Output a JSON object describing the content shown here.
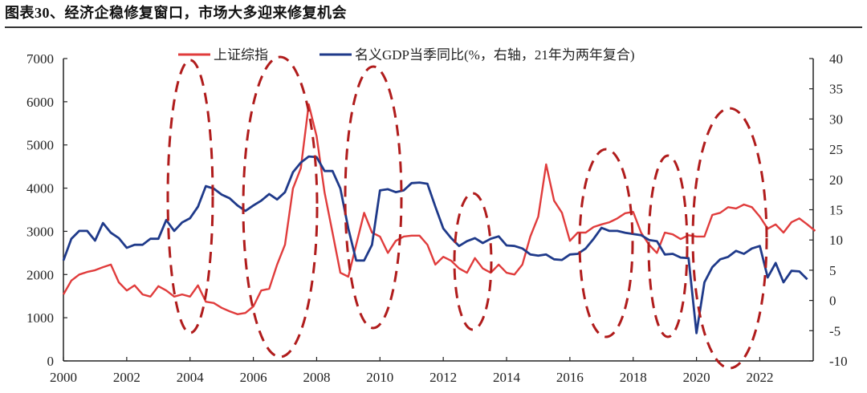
{
  "title": "图表30、经济企稳修复窗口，市场大多迎来修复机会",
  "chart_data": {
    "type": "line",
    "title": "图表30、经济企稳修复窗口，市场大多迎来修复机会",
    "legend_position": "top",
    "grid": false,
    "x_ticks": [
      "2000",
      "2002",
      "2004",
      "2006",
      "2008",
      "2010",
      "2012",
      "2014",
      "2016",
      "2018",
      "2020",
      "2022"
    ],
    "xlim": [
      2000,
      2023.75
    ],
    "left_axis": {
      "ylim": [
        0,
        7000
      ],
      "ticks": [
        "0",
        "1000",
        "2000",
        "3000",
        "4000",
        "5000",
        "6000",
        "7000"
      ]
    },
    "right_axis": {
      "ylim": [
        -10,
        40
      ],
      "ticks": [
        "-10",
        "-5",
        "0",
        "5",
        "10",
        "15",
        "20",
        "25",
        "30",
        "35",
        "40"
      ]
    },
    "series": [
      {
        "name": "上证综指",
        "axis": "left",
        "color": "#e03c3c",
        "x": [
          2000,
          2000.25,
          2000.5,
          2000.75,
          2001,
          2001.25,
          2001.5,
          2001.75,
          2002,
          2002.25,
          2002.5,
          2002.75,
          2003,
          2003.25,
          2003.5,
          2003.75,
          2004,
          2004.25,
          2004.5,
          2004.75,
          2005,
          2005.25,
          2005.5,
          2005.75,
          2006,
          2006.25,
          2006.5,
          2006.75,
          2007,
          2007.25,
          2007.5,
          2007.75,
          2008,
          2008.25,
          2008.5,
          2008.75,
          2009,
          2009.25,
          2009.5,
          2009.75,
          2010,
          2010.25,
          2010.5,
          2010.75,
          2011,
          2011.25,
          2011.5,
          2011.75,
          2012,
          2012.25,
          2012.5,
          2012.75,
          2013,
          2013.25,
          2013.5,
          2013.75,
          2014,
          2014.25,
          2014.5,
          2014.75,
          2015,
          2015.25,
          2015.5,
          2015.75,
          2016,
          2016.25,
          2016.5,
          2016.75,
          2017,
          2017.25,
          2017.5,
          2017.75,
          2018,
          2018.25,
          2018.5,
          2018.75,
          2019,
          2019.25,
          2019.5,
          2019.75,
          2020,
          2020.25,
          2020.5,
          2020.75,
          2021,
          2021.25,
          2021.5,
          2021.75,
          2022,
          2022.25,
          2022.5,
          2022.75,
          2023,
          2023.25,
          2023.5,
          2023.75
        ],
        "values": [
          1540,
          1860,
          2000,
          2060,
          2100,
          2170,
          2230,
          1820,
          1630,
          1750,
          1540,
          1490,
          1730,
          1630,
          1490,
          1540,
          1490,
          1750,
          1370,
          1340,
          1230,
          1150,
          1080,
          1110,
          1260,
          1630,
          1670,
          2230,
          2690,
          3990,
          4460,
          5940,
          5200,
          3900,
          2970,
          2040,
          1950,
          2690,
          3430,
          2970,
          2880,
          2500,
          2780,
          2880,
          2900,
          2900,
          2690,
          2230,
          2410,
          2320,
          2140,
          2040,
          2380,
          2140,
          2040,
          2230,
          2040,
          2000,
          2230,
          2880,
          3340,
          4550,
          3710,
          3430,
          2780,
          2970,
          2970,
          3100,
          3160,
          3210,
          3300,
          3420,
          3450,
          2970,
          2690,
          2500,
          2970,
          2930,
          2820,
          2910,
          2880,
          2880,
          3380,
          3430,
          3560,
          3530,
          3620,
          3560,
          3340,
          3060,
          3160,
          2970,
          3210,
          3300,
          3160,
          3010
        ]
      },
      {
        "name": "名义GDP当季同比(%，右轴，21年为两年复合)",
        "axis": "right",
        "color": "#1f3a8a",
        "x": [
          2000,
          2000.25,
          2000.5,
          2000.75,
          2001,
          2001.25,
          2001.5,
          2001.75,
          2002,
          2002.25,
          2002.5,
          2002.75,
          2003,
          2003.25,
          2003.5,
          2003.75,
          2004,
          2004.25,
          2004.5,
          2004.75,
          2005,
          2005.25,
          2005.5,
          2005.75,
          2006,
          2006.25,
          2006.5,
          2006.75,
          2007,
          2007.25,
          2007.5,
          2007.75,
          2008,
          2008.25,
          2008.5,
          2008.75,
          2009,
          2009.25,
          2009.5,
          2009.75,
          2010,
          2010.25,
          2010.5,
          2010.75,
          2011,
          2011.25,
          2011.5,
          2011.75,
          2012,
          2012.25,
          2012.5,
          2012.75,
          2013,
          2013.25,
          2013.5,
          2013.75,
          2014,
          2014.25,
          2014.5,
          2014.75,
          2015,
          2015.25,
          2015.5,
          2015.75,
          2016,
          2016.25,
          2016.5,
          2016.75,
          2017,
          2017.25,
          2017.5,
          2017.75,
          2018,
          2018.25,
          2018.5,
          2018.75,
          2019,
          2019.25,
          2019.5,
          2019.75,
          2020,
          2020.25,
          2020.5,
          2020.75,
          2021,
          2021.25,
          2021.5,
          2021.75,
          2022,
          2022.25,
          2022.5,
          2022.75,
          2023,
          2023.25,
          2023.5
        ],
        "values": [
          6.6,
          10.2,
          11.5,
          11.5,
          9.9,
          12.8,
          11.2,
          10.3,
          8.7,
          9.2,
          9.2,
          10.2,
          10.2,
          13.3,
          11.5,
          12.9,
          13.6,
          15.5,
          18.9,
          18.5,
          17.5,
          16.9,
          15.7,
          14.8,
          15.7,
          16.5,
          17.6,
          16.7,
          17.9,
          21.2,
          22.8,
          23.8,
          23.7,
          21.4,
          21.4,
          18.5,
          11.9,
          6.6,
          6.6,
          9.2,
          18.2,
          18.4,
          17.9,
          18.2,
          19.4,
          19.5,
          19.3,
          15.5,
          11.9,
          10.3,
          9.0,
          9.8,
          10.3,
          9.5,
          10.2,
          10.6,
          9.1,
          9.0,
          8.6,
          7.6,
          7.4,
          7.6,
          6.8,
          6.7,
          7.6,
          7.7,
          8.6,
          10.2,
          12.0,
          11.5,
          11.5,
          11.2,
          11.0,
          10.8,
          10.0,
          9.8,
          7.6,
          7.7,
          7.1,
          7.0,
          -5.4,
          3.0,
          5.5,
          6.8,
          7.2,
          8.2,
          7.7,
          8.6,
          9.0,
          3.8,
          6.2,
          3.0,
          4.9,
          4.8,
          3.5
        ]
      }
    ],
    "annotations": {
      "type": "dashed-ellipses",
      "color": "#b01c1c"
    }
  }
}
